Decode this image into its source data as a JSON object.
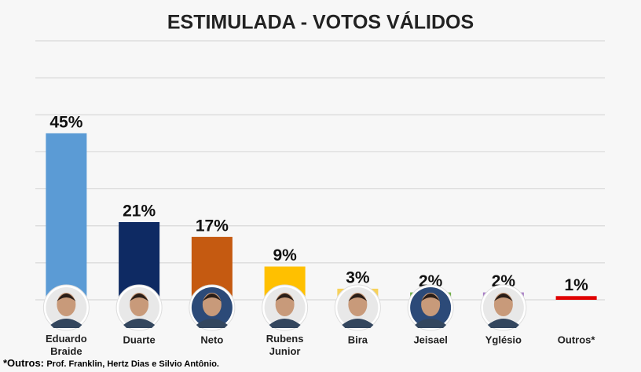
{
  "chart_data": {
    "type": "bar",
    "title": "ESTIMULADA - VOTOS VÁLIDOS",
    "categories": [
      "Eduardo Braide",
      "Duarte",
      "Neto",
      "Rubens Junior",
      "Bira",
      "Jeisael",
      "Yglésio",
      "Outros*"
    ],
    "values": [
      45,
      21,
      17,
      9,
      3,
      2,
      2,
      1
    ],
    "value_labels": [
      "45%",
      "21%",
      "17%",
      "9%",
      "3%",
      "2%",
      "2%",
      "1%"
    ],
    "colors": [
      "#5b9bd5",
      "#0e2a63",
      "#c55a11",
      "#ffc000",
      "#f7d15a",
      "#70ad47",
      "#a97fc6",
      "#e00000"
    ],
    "ylim": [
      0,
      70
    ],
    "yticks": [
      0,
      10,
      20,
      30,
      40,
      50,
      60,
      70
    ],
    "grid": true,
    "footnote": {
      "label": "*Outros:",
      "text": "Prof. Franklin, Hertz Dias e Silvio Antônio."
    }
  }
}
